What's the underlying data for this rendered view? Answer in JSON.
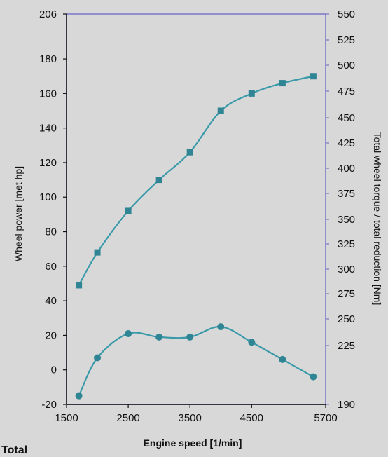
{
  "caption": "Total",
  "chart_data": {
    "type": "line",
    "xlabel": "Engine speed [1/min]",
    "ylabel_left": "Wheel power [met hp]",
    "ylabel_right": "Total wheel torque / total reduction [Nm]",
    "xlim": [
      1500,
      5700
    ],
    "x_ticks": [
      "1500",
      "2500",
      "3500",
      "4500",
      "5700"
    ],
    "x_tick_values": [
      1500,
      2500,
      3500,
      4500,
      5700
    ],
    "ylim_left": [
      -20,
      206
    ],
    "y_left_ticks": [
      "206",
      "180",
      "160",
      "140",
      "120",
      "100",
      "80",
      "60",
      "40",
      "20",
      "0",
      "-20"
    ],
    "y_left_tick_values": [
      206,
      180,
      160,
      140,
      120,
      100,
      80,
      60,
      40,
      20,
      0,
      -20
    ],
    "ylim_right": [
      190,
      550
    ],
    "y_right_ticks": [
      "550",
      "525",
      "500",
      "475",
      "450",
      "425",
      "400",
      "375",
      "350",
      "325",
      "300",
      "275",
      "250",
      "225",
      "190"
    ],
    "y_right_tick_values": [
      550,
      525,
      500,
      475,
      450,
      425,
      400,
      375,
      350,
      325,
      300,
      275,
      250,
      225,
      190
    ],
    "grid": false,
    "colors": {
      "line": "#3a9aaa",
      "marker": "#2f8594",
      "frame": "#7878c8",
      "left_axis": "#111111"
    },
    "series": [
      {
        "axis": "left",
        "marker": "square",
        "x": [
          1700,
          2000,
          2500,
          3000,
          3500,
          4000,
          4500,
          5000,
          5500
        ],
        "y": [
          49,
          68,
          92,
          110,
          126,
          150,
          160,
          166,
          170
        ]
      },
      {
        "axis": "left",
        "marker": "circle",
        "x": [
          1700,
          2000,
          2500,
          3000,
          3500,
          4000,
          4500,
          5000,
          5500
        ],
        "y": [
          -15,
          7,
          21,
          19,
          19,
          25,
          16,
          6,
          -4
        ]
      }
    ]
  }
}
